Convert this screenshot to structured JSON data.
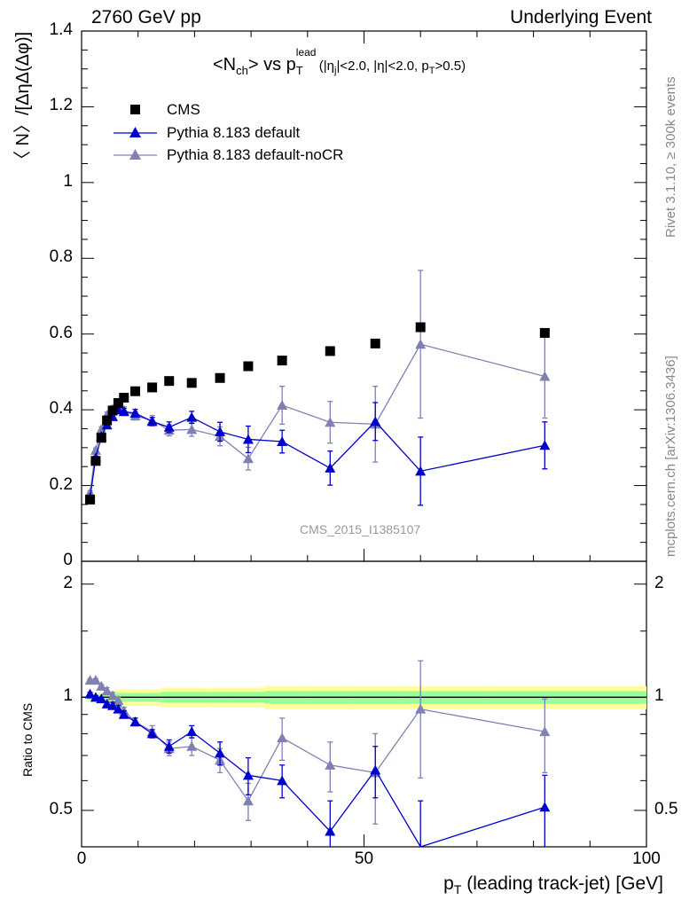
{
  "header": {
    "left": "2760 GeV pp",
    "right": "Underlying Event"
  },
  "side_labels": {
    "rivet": "Rivet 3.1.10, ≥ 300k events",
    "mcplots": "mcplots.cern.ch [arXiv:1306.3436]"
  },
  "watermark": "CMS_2015_I1385107",
  "chart_data": {
    "type": "scatter",
    "title": {
      "main": "<N",
      "main_sub": "ch",
      "mid": "> vs p",
      "mid_sup": "lead",
      "mid_sub": "T",
      "cuts": "(|η",
      "cuts_sub": "j",
      "cuts_rest": "|<2.0, |η|<2.0, p",
      "cuts_sub2": "T",
      "cuts_end": ">0.5)"
    },
    "ylabel": "〈 N〉/[ΔηΔ(Δφ)]",
    "ratio_ylabel": "Ratio to CMS",
    "xlabel": "p",
    "xlabel_sub": "T",
    "xlabel_rest": " (leading track-jet) [GeV]",
    "xlim": [
      0,
      100
    ],
    "ylim": [
      0,
      1.4
    ],
    "ratio_ylim": [
      0.4,
      2.3
    ],
    "x_ticks": [
      0,
      50,
      100
    ],
    "x_tick_labels": [
      "0",
      "50",
      "100"
    ],
    "y_ticks": [
      0,
      0.2,
      0.4,
      0.6,
      0.8,
      1,
      1.2,
      1.4
    ],
    "y_tick_labels": [
      "0",
      "0.2",
      "0.4",
      "0.6",
      "0.8",
      "1",
      "1.2",
      "1.4"
    ],
    "ratio_y_ticks": [
      0.5,
      1,
      2
    ],
    "ratio_y_tick_labels": [
      "0.5",
      "1",
      "2"
    ],
    "legend": [
      "CMS",
      "Pythia 8.183 default",
      "Pythia 8.183 default-noCR"
    ],
    "legend_position": "top-left",
    "series": [
      {
        "name": "CMS",
        "color": "#000000",
        "marker": "square",
        "x": [
          1.5,
          2.5,
          3.5,
          4.5,
          5.5,
          6.5,
          7.5,
          9.5,
          12.5,
          15.5,
          19.5,
          24.5,
          29.5,
          35.5,
          44.0,
          52.0,
          60.0,
          82.0
        ],
        "y": [
          0.163,
          0.265,
          0.326,
          0.372,
          0.398,
          0.418,
          0.432,
          0.449,
          0.459,
          0.476,
          0.471,
          0.484,
          0.515,
          0.53,
          0.555,
          0.575,
          0.618,
          0.603
        ],
        "uncertainty_band": [
          0.03,
          0.03,
          0.03,
          0.04,
          0.04,
          0.05,
          0.05,
          0.05,
          0.05,
          0.06,
          0.06,
          0.06,
          0.06,
          0.07,
          0.07,
          0.07,
          0.07,
          0.07
        ]
      },
      {
        "name": "Pythia 8.183 default",
        "color": "#0000cc",
        "marker": "triangle",
        "x": [
          1.5,
          2.5,
          3.5,
          4.5,
          5.5,
          6.5,
          7.5,
          9.5,
          12.5,
          15.5,
          19.5,
          24.5,
          29.5,
          35.5,
          44.0,
          52.0,
          60.0,
          82.0
        ],
        "y": [
          0.168,
          0.273,
          0.33,
          0.36,
          0.382,
          0.4,
          0.395,
          0.391,
          0.369,
          0.354,
          0.38,
          0.342,
          0.322,
          0.316,
          0.246,
          0.369,
          0.238,
          0.306
        ],
        "yerr": [
          0.004,
          0.005,
          0.006,
          0.006,
          0.007,
          0.008,
          0.009,
          0.01,
          0.011,
          0.014,
          0.016,
          0.025,
          0.035,
          0.03,
          0.045,
          0.05,
          0.09,
          0.062
        ],
        "ratio": [
          1.02,
          1.0,
          0.99,
          0.96,
          0.95,
          0.93,
          0.9,
          0.86,
          0.8,
          0.74,
          0.81,
          0.71,
          0.62,
          0.6,
          0.44,
          0.64,
          0.38,
          0.51
        ],
        "ratio_err": [
          0.01,
          0.01,
          0.01,
          0.01,
          0.02,
          0.02,
          0.02,
          0.02,
          0.02,
          0.03,
          0.03,
          0.05,
          0.07,
          0.06,
          0.09,
          0.1,
          0.15,
          0.11
        ]
      },
      {
        "name": "Pythia 8.183 default-noCR",
        "color": "#8080b3",
        "marker": "triangle",
        "x": [
          1.5,
          2.5,
          3.5,
          4.5,
          5.5,
          6.5,
          7.5,
          9.5,
          12.5,
          15.5,
          19.5,
          24.5,
          29.5,
          35.5,
          44.0,
          52.0,
          60.0,
          82.0
        ],
        "y": [
          0.181,
          0.293,
          0.348,
          0.386,
          0.402,
          0.411,
          0.398,
          0.384,
          0.372,
          0.346,
          0.348,
          0.33,
          0.271,
          0.412,
          0.367,
          0.362,
          0.573,
          0.488
        ],
        "yerr": [
          0.005,
          0.006,
          0.007,
          0.008,
          0.009,
          0.009,
          0.01,
          0.011,
          0.013,
          0.015,
          0.018,
          0.025,
          0.03,
          0.05,
          0.055,
          0.1,
          0.195,
          0.11
        ],
        "ratio": [
          1.11,
          1.11,
          1.07,
          1.04,
          1.01,
          0.98,
          0.92,
          0.86,
          0.81,
          0.73,
          0.74,
          0.68,
          0.53,
          0.78,
          0.66,
          0.63,
          0.93,
          0.81
        ],
        "ratio_err": [
          0.01,
          0.01,
          0.01,
          0.02,
          0.02,
          0.02,
          0.02,
          0.02,
          0.03,
          0.03,
          0.04,
          0.05,
          0.06,
          0.1,
          0.1,
          0.17,
          0.32,
          0.18
        ]
      }
    ]
  }
}
